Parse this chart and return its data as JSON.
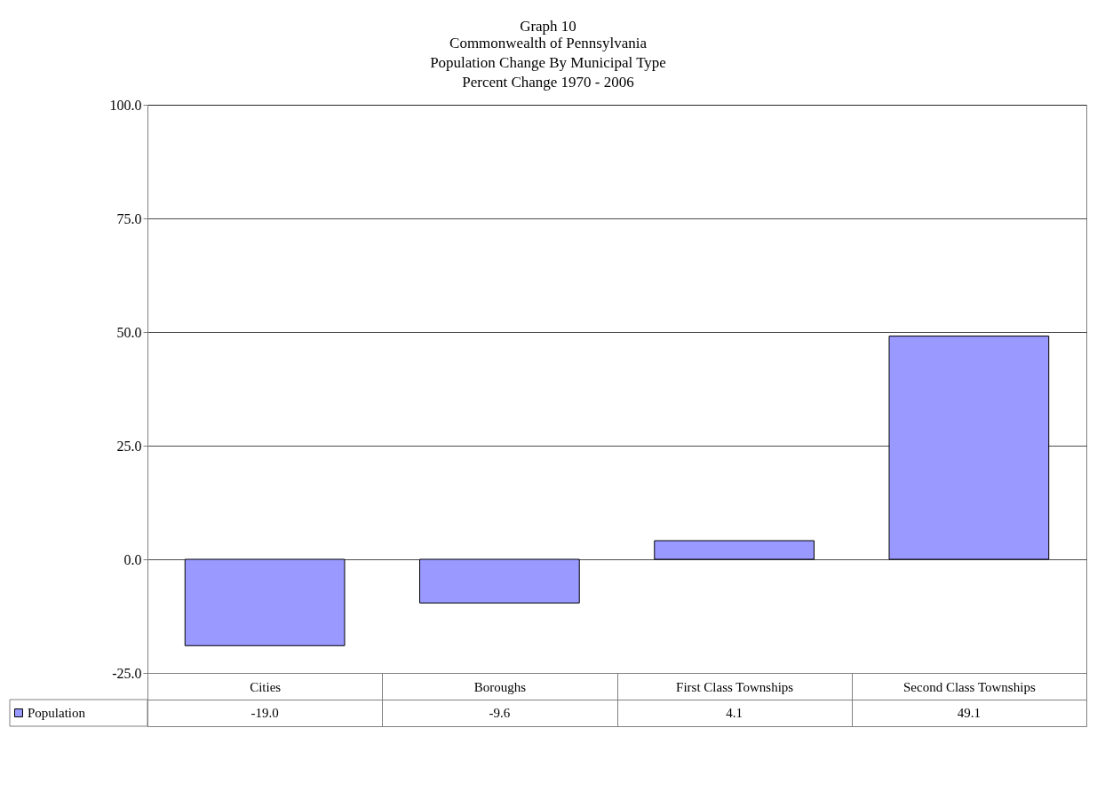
{
  "chart_data": {
    "type": "bar",
    "title": "Graph 10",
    "subtitle": "Commonwealth of Pennsylvania\nPopulation Change By Municipal Type\nPercent Change 1970 - 2006",
    "categories": [
      "Cities",
      "Boroughs",
      "First Class Townships",
      "Second Class Townships"
    ],
    "series": [
      {
        "name": "Population",
        "color": "#9999ff",
        "values": [
          -19.0,
          -9.6,
          4.1,
          49.1
        ],
        "value_labels": [
          "-19.0",
          "-9.6",
          "4.1",
          "49.1"
        ]
      }
    ],
    "ylim": [
      -25,
      100
    ],
    "yticks": [
      {
        "value": -25,
        "label": "-25.0"
      },
      {
        "value": 0,
        "label": "0.0"
      },
      {
        "value": 25,
        "label": "25.0"
      },
      {
        "value": 50,
        "label": "50.0"
      },
      {
        "value": 75,
        "label": "75.0"
      },
      {
        "value": 100,
        "label": "100.0"
      }
    ],
    "grid": "y",
    "legend": "bottom left"
  }
}
